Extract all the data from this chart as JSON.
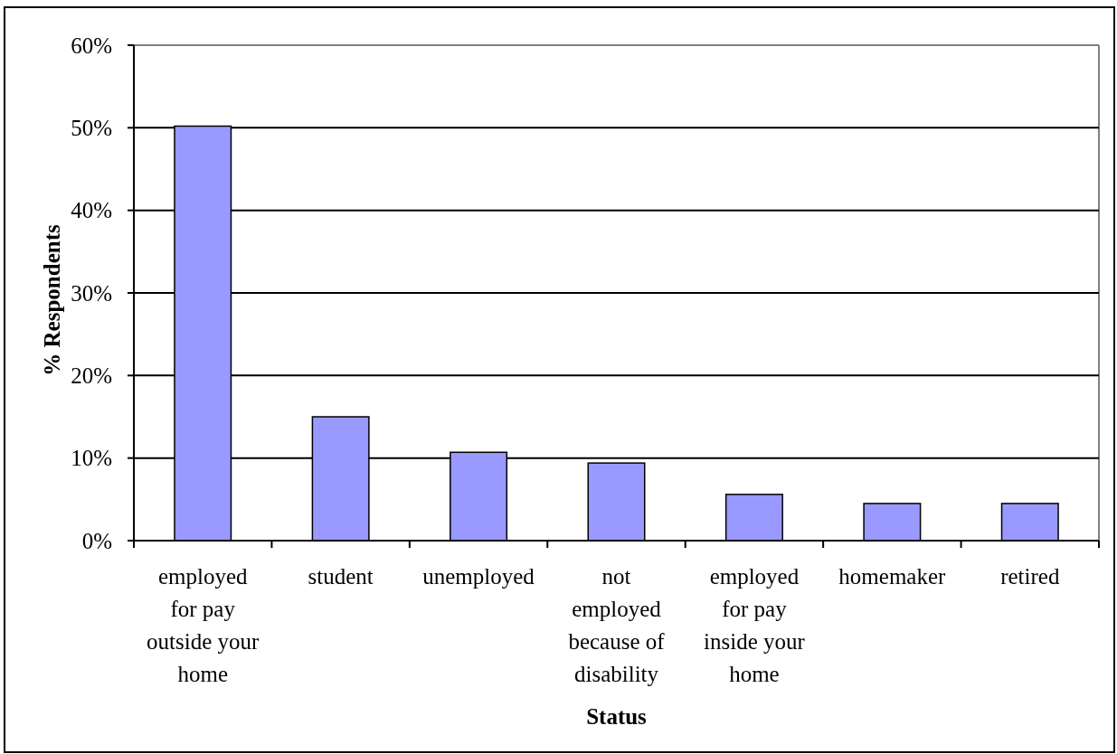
{
  "chart_data": {
    "type": "bar",
    "xlabel": "Status",
    "ylabel": "% Respondents",
    "categories": [
      "employed for pay outside your home",
      "student",
      "unemployed",
      "not employed because of disability",
      "employed for pay inside your home",
      "homemaker",
      "retired"
    ],
    "values": [
      50.2,
      15.0,
      10.7,
      9.4,
      5.6,
      4.5,
      4.5
    ],
    "color": "#9999ff",
    "ylim": [
      0,
      60
    ],
    "yticks": [
      {
        "value": 0,
        "label": "0%"
      },
      {
        "value": 10,
        "label": "10%"
      },
      {
        "value": 20,
        "label": "20%"
      },
      {
        "value": 30,
        "label": "30%"
      },
      {
        "value": 40,
        "label": "40%"
      },
      {
        "value": 50,
        "label": "50%"
      },
      {
        "value": 60,
        "label": "60%"
      }
    ],
    "grid": "y"
  }
}
